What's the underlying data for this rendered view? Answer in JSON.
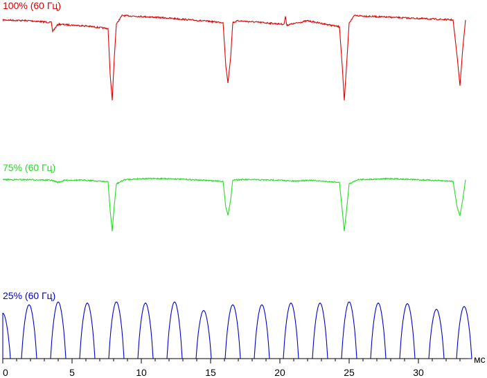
{
  "chart_data": {
    "type": "line",
    "x_unit": "мс",
    "xlim": [
      0,
      34
    ],
    "x_ticks": [
      0,
      5,
      10,
      15,
      20,
      25,
      30
    ],
    "grid": false,
    "legend": "inline labels above each trace",
    "series": [
      {
        "name": "100% (60 Гц)",
        "color": "#dd0000",
        "baseline_level": 0.93,
        "dip_bottom": 0.0,
        "dips_ms": [
          7.9,
          16.25,
          24.65,
          33.0
        ],
        "ticks_ms": [
          3.6,
          20.4
        ],
        "x": [
          0.0,
          2.0,
          3.5,
          3.6,
          3.7,
          3.9,
          4.0,
          6.0,
          7.6,
          7.75,
          7.9,
          8.05,
          8.2,
          8.6,
          10.0,
          12.0,
          15.9,
          16.1,
          16.25,
          16.45,
          16.6,
          17.0,
          20.3,
          20.4,
          20.5,
          22.0,
          24.3,
          24.5,
          24.65,
          24.85,
          25.0,
          25.4,
          28.0,
          32.5,
          32.8,
          33.0,
          33.2,
          33.4
        ],
        "values": [
          0.93,
          0.92,
          0.9,
          0.8,
          0.82,
          0.86,
          0.88,
          0.86,
          0.83,
          0.3,
          0.0,
          0.5,
          0.88,
          0.98,
          0.97,
          0.95,
          0.9,
          0.4,
          0.2,
          0.5,
          0.9,
          0.92,
          0.88,
          0.97,
          0.87,
          0.92,
          0.85,
          0.4,
          0.0,
          0.5,
          0.9,
          0.98,
          0.96,
          0.93,
          0.5,
          0.17,
          0.6,
          0.93
        ]
      },
      {
        "name": "75% (60 Гц)",
        "color": "#22dd22",
        "x": [
          0.0,
          2.0,
          3.5,
          4.0,
          4.5,
          6.0,
          7.6,
          7.75,
          7.9,
          8.05,
          8.2,
          8.8,
          10.0,
          12.0,
          15.9,
          16.1,
          16.25,
          16.45,
          16.6,
          18.0,
          20.0,
          21.0,
          22.0,
          24.3,
          24.5,
          24.65,
          24.85,
          25.0,
          25.6,
          28.0,
          32.5,
          32.8,
          33.0,
          33.2,
          33.4
        ],
        "values": [
          0.98,
          0.98,
          0.97,
          0.93,
          0.97,
          0.97,
          0.94,
          0.4,
          0.0,
          0.5,
          0.9,
          0.98,
          1.0,
          1.0,
          0.95,
          0.45,
          0.3,
          0.6,
          0.98,
          0.98,
          0.97,
          0.95,
          0.97,
          0.93,
          0.4,
          0.0,
          0.5,
          0.9,
          0.98,
          1.0,
          0.95,
          0.45,
          0.3,
          0.6,
          0.98
        ]
      },
      {
        "name": "25% (60 Гц)",
        "color": "#0000cc",
        "pulse_centers_ms": [
          0.0,
          1.9,
          4.0,
          6.1,
          8.2,
          10.3,
          12.4,
          14.5,
          16.6,
          18.7,
          20.8,
          22.9,
          25.0,
          27.1,
          29.2,
          31.3,
          33.3
        ],
        "pulse_heights": [
          0.8,
          0.95,
          1.0,
          0.98,
          1.0,
          0.98,
          1.0,
          0.85,
          0.95,
          0.95,
          0.98,
          0.98,
          1.0,
          0.98,
          0.97,
          0.87,
          0.92
        ]
      }
    ]
  }
}
